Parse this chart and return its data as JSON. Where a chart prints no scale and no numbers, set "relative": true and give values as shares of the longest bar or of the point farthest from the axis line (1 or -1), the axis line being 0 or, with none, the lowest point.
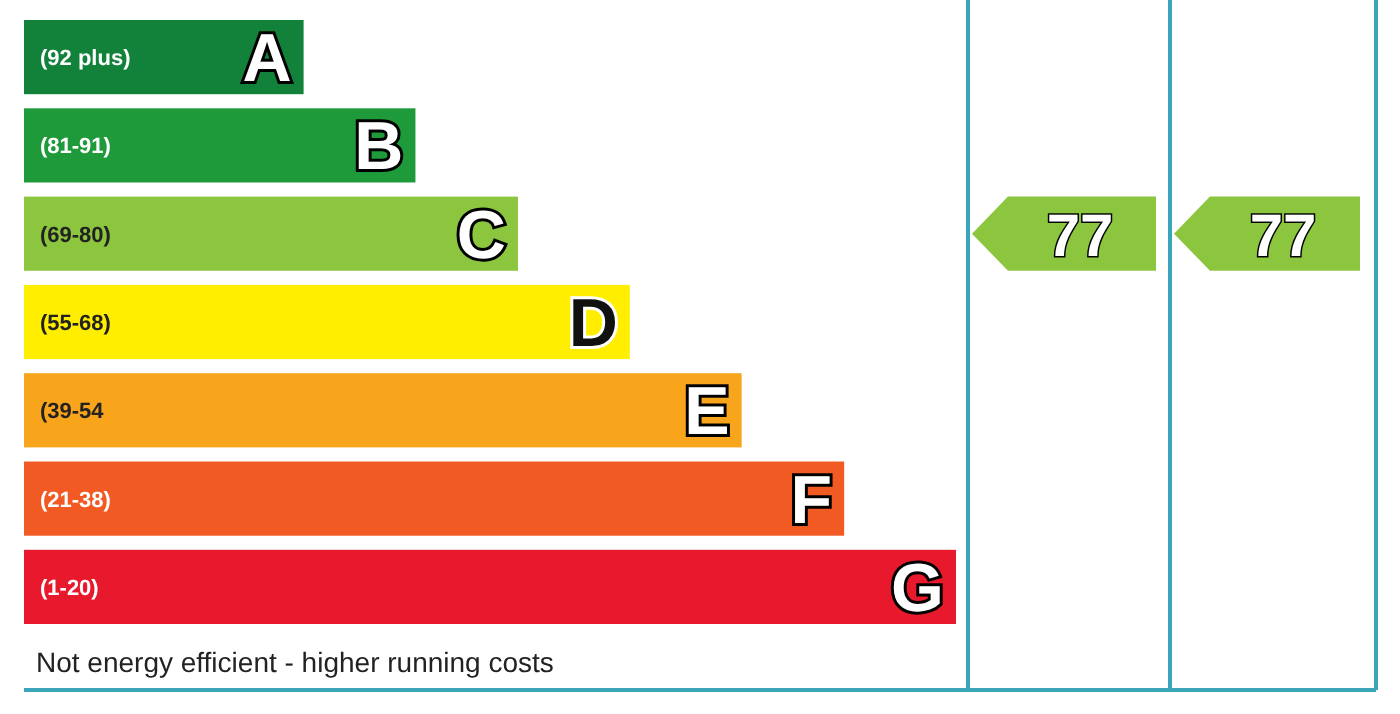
{
  "chart_data": {
    "type": "bar",
    "orientation": "horizontal",
    "relative": true,
    "categories": [
      "A",
      "B",
      "C",
      "D",
      "E",
      "F",
      "G"
    ],
    "values": [
      0.3,
      0.42,
      0.53,
      0.65,
      0.77,
      0.88,
      1
    ],
    "colors": [
      "#12823b",
      "#1f9a3a",
      "#8cc63f",
      "#ffee00",
      "#f9a51b",
      "#f15a22",
      "#e8192c"
    ],
    "annotations": [
      "(92 plus)",
      "(81-91)",
      "(69-80)",
      "(55-68)",
      "(39-54",
      "(21-38)",
      "(1-20)",
      "77",
      "77",
      "Not energy efficient - higher running costs"
    ]
  }
}
